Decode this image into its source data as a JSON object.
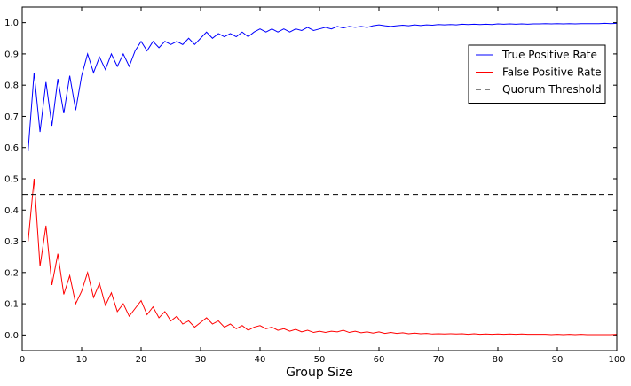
{
  "chart_data": {
    "type": "line",
    "title": "",
    "xlabel": "Group Size",
    "ylabel": "",
    "xlim": [
      0,
      100
    ],
    "ylim": [
      -0.05,
      1.05
    ],
    "xticks": [
      0,
      10,
      20,
      30,
      40,
      50,
      60,
      70,
      80,
      90,
      100
    ],
    "yticks": [
      0.0,
      0.1,
      0.2,
      0.3,
      0.4,
      0.5,
      0.6,
      0.7,
      0.8,
      0.9,
      1.0
    ],
    "xtick_labels": [
      "0",
      "10",
      "20",
      "30",
      "40",
      "50",
      "60",
      "70",
      "80",
      "90",
      "100"
    ],
    "ytick_labels": [
      "0.0",
      "0.1",
      "0.2",
      "0.3",
      "0.4",
      "0.5",
      "0.6",
      "0.7",
      "0.8",
      "0.9",
      "1.0"
    ],
    "grid": false,
    "legend_position": "top-right",
    "series": [
      {
        "name": "True Positive Rate",
        "color": "#0000ff",
        "style": "solid",
        "x": [
          1,
          2,
          3,
          4,
          5,
          6,
          7,
          8,
          9,
          10,
          11,
          12,
          13,
          14,
          15,
          16,
          17,
          18,
          19,
          20,
          21,
          22,
          23,
          24,
          25,
          26,
          27,
          28,
          29,
          30,
          31,
          32,
          33,
          34,
          35,
          36,
          37,
          38,
          39,
          40,
          41,
          42,
          43,
          44,
          45,
          46,
          47,
          48,
          49,
          50,
          51,
          52,
          53,
          54,
          55,
          56,
          57,
          58,
          59,
          60,
          61,
          62,
          63,
          64,
          65,
          66,
          67,
          68,
          69,
          70,
          71,
          72,
          73,
          74,
          75,
          76,
          77,
          78,
          79,
          80,
          81,
          82,
          83,
          84,
          85,
          86,
          87,
          88,
          89,
          90,
          91,
          92,
          93,
          94,
          95,
          96,
          97,
          98,
          99,
          100
        ],
        "y": [
          0.59,
          0.84,
          0.65,
          0.81,
          0.67,
          0.82,
          0.71,
          0.83,
          0.72,
          0.83,
          0.9,
          0.84,
          0.89,
          0.85,
          0.9,
          0.86,
          0.9,
          0.86,
          0.91,
          0.94,
          0.91,
          0.94,
          0.92,
          0.94,
          0.93,
          0.94,
          0.93,
          0.95,
          0.93,
          0.95,
          0.97,
          0.95,
          0.965,
          0.955,
          0.965,
          0.955,
          0.97,
          0.955,
          0.97,
          0.98,
          0.97,
          0.98,
          0.97,
          0.98,
          0.97,
          0.98,
          0.975,
          0.985,
          0.975,
          0.98,
          0.985,
          0.98,
          0.988,
          0.983,
          0.988,
          0.985,
          0.988,
          0.985,
          0.99,
          0.993,
          0.99,
          0.988,
          0.99,
          0.992,
          0.99,
          0.993,
          0.991,
          0.993,
          0.992,
          0.994,
          0.993,
          0.994,
          0.993,
          0.995,
          0.994,
          0.995,
          0.994,
          0.995,
          0.994,
          0.996,
          0.995,
          0.996,
          0.995,
          0.996,
          0.995,
          0.996,
          0.996,
          0.997,
          0.996,
          0.997,
          0.996,
          0.997,
          0.996,
          0.997,
          0.997,
          0.997,
          0.997,
          0.998,
          0.997,
          0.998
        ]
      },
      {
        "name": "False Positive Rate",
        "color": "#ff0000",
        "style": "solid",
        "x": [
          1,
          2,
          3,
          4,
          5,
          6,
          7,
          8,
          9,
          10,
          11,
          12,
          13,
          14,
          15,
          16,
          17,
          18,
          19,
          20,
          21,
          22,
          23,
          24,
          25,
          26,
          27,
          28,
          29,
          30,
          31,
          32,
          33,
          34,
          35,
          36,
          37,
          38,
          39,
          40,
          41,
          42,
          43,
          44,
          45,
          46,
          47,
          48,
          49,
          50,
          51,
          52,
          53,
          54,
          55,
          56,
          57,
          58,
          59,
          60,
          61,
          62,
          63,
          64,
          65,
          66,
          67,
          68,
          69,
          70,
          71,
          72,
          73,
          74,
          75,
          76,
          77,
          78,
          79,
          80,
          81,
          82,
          83,
          84,
          85,
          86,
          87,
          88,
          89,
          90,
          91,
          92,
          93,
          94,
          95,
          96,
          97,
          98,
          99,
          100
        ],
        "y": [
          0.3,
          0.5,
          0.22,
          0.35,
          0.16,
          0.26,
          0.13,
          0.19,
          0.1,
          0.14,
          0.2,
          0.12,
          0.165,
          0.095,
          0.135,
          0.075,
          0.1,
          0.06,
          0.085,
          0.11,
          0.065,
          0.09,
          0.055,
          0.075,
          0.045,
          0.06,
          0.035,
          0.045,
          0.025,
          0.04,
          0.055,
          0.035,
          0.045,
          0.025,
          0.035,
          0.02,
          0.03,
          0.015,
          0.025,
          0.03,
          0.02,
          0.025,
          0.015,
          0.02,
          0.012,
          0.018,
          0.01,
          0.015,
          0.008,
          0.012,
          0.008,
          0.012,
          0.01,
          0.015,
          0.008,
          0.012,
          0.007,
          0.01,
          0.006,
          0.01,
          0.005,
          0.008,
          0.005,
          0.007,
          0.004,
          0.006,
          0.004,
          0.005,
          0.003,
          0.004,
          0.003,
          0.004,
          0.003,
          0.004,
          0.002,
          0.004,
          0.002,
          0.003,
          0.002,
          0.003,
          0.002,
          0.003,
          0.002,
          0.003,
          0.002,
          0.002,
          0.002,
          0.002,
          0.001,
          0.002,
          0.001,
          0.002,
          0.001,
          0.002,
          0.001,
          0.001,
          0.001,
          0.001,
          0.001,
          0.002
        ]
      },
      {
        "name": "Quorum Threshold",
        "color": "#000000",
        "style": "dashed",
        "x": [
          0,
          100
        ],
        "y": [
          0.45,
          0.45
        ]
      }
    ]
  }
}
